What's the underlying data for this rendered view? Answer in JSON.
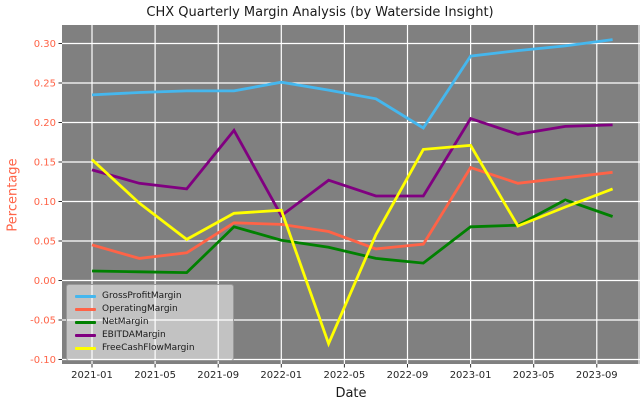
{
  "chart_data": {
    "type": "line",
    "title": "CHX Quarterly Margin Analysis (by Waterside Insight)",
    "xlabel": "Date",
    "ylabel": "Percentage",
    "x": [
      "2021-01",
      "2021-04",
      "2021-07",
      "2021-10",
      "2022-01",
      "2022-04",
      "2022-07",
      "2022-10",
      "2023-01",
      "2023-04",
      "2023-07",
      "2023-10"
    ],
    "series": [
      {
        "name": "GrossProfitMargin",
        "color": "#45b7ee",
        "values": [
          0.235,
          0.238,
          0.24,
          0.24,
          0.251,
          0.241,
          0.23,
          0.193,
          0.284,
          0.291,
          0.297,
          0.305
        ]
      },
      {
        "name": "OperatingMargin",
        "color": "#ff6347",
        "values": [
          0.045,
          0.028,
          0.035,
          0.073,
          0.071,
          0.062,
          0.04,
          0.046,
          0.143,
          0.123,
          0.13,
          0.137
        ]
      },
      {
        "name": "NetMargin",
        "color": "#008000",
        "values": [
          0.012,
          0.011,
          0.01,
          0.068,
          0.051,
          0.042,
          0.028,
          0.022,
          0.068,
          0.07,
          0.102,
          0.081
        ]
      },
      {
        "name": "EBITDAMargin",
        "color": "#800080",
        "values": [
          0.14,
          0.123,
          0.116,
          0.19,
          0.082,
          0.127,
          0.107,
          0.107,
          0.205,
          0.185,
          0.195,
          0.197
        ]
      },
      {
        "name": "FreeCashFlowMargin",
        "color": "#ffff00",
        "values": [
          0.153,
          0.098,
          0.052,
          0.085,
          0.089,
          -0.08,
          0.058,
          0.166,
          0.171,
          0.069,
          0.093,
          0.116
        ]
      }
    ],
    "x_tick_labels": [
      "2021-01",
      "2021-05",
      "2021-09",
      "2022-01",
      "2022-05",
      "2022-09",
      "2023-01",
      "2023-05",
      "2023-09"
    ],
    "y_tick_labels": [
      "0.30",
      "0.25",
      "0.20",
      "0.15",
      "0.10",
      "0.05",
      "0.00",
      "-0.05",
      "-0.10"
    ],
    "y_tick_values": [
      0.3,
      0.25,
      0.2,
      0.15,
      0.1,
      0.05,
      0.0,
      -0.05,
      -0.1
    ],
    "ylim": [
      -0.099,
      0.324
    ],
    "grid": true,
    "legend_position": "lower left",
    "colors": {
      "plot_bg": "#808080",
      "grid": "#ffffff",
      "y_tick": "#ff6347",
      "x_tick": "#262626",
      "title": "#1a1a1a",
      "figure_bg": "#ffffff"
    }
  }
}
